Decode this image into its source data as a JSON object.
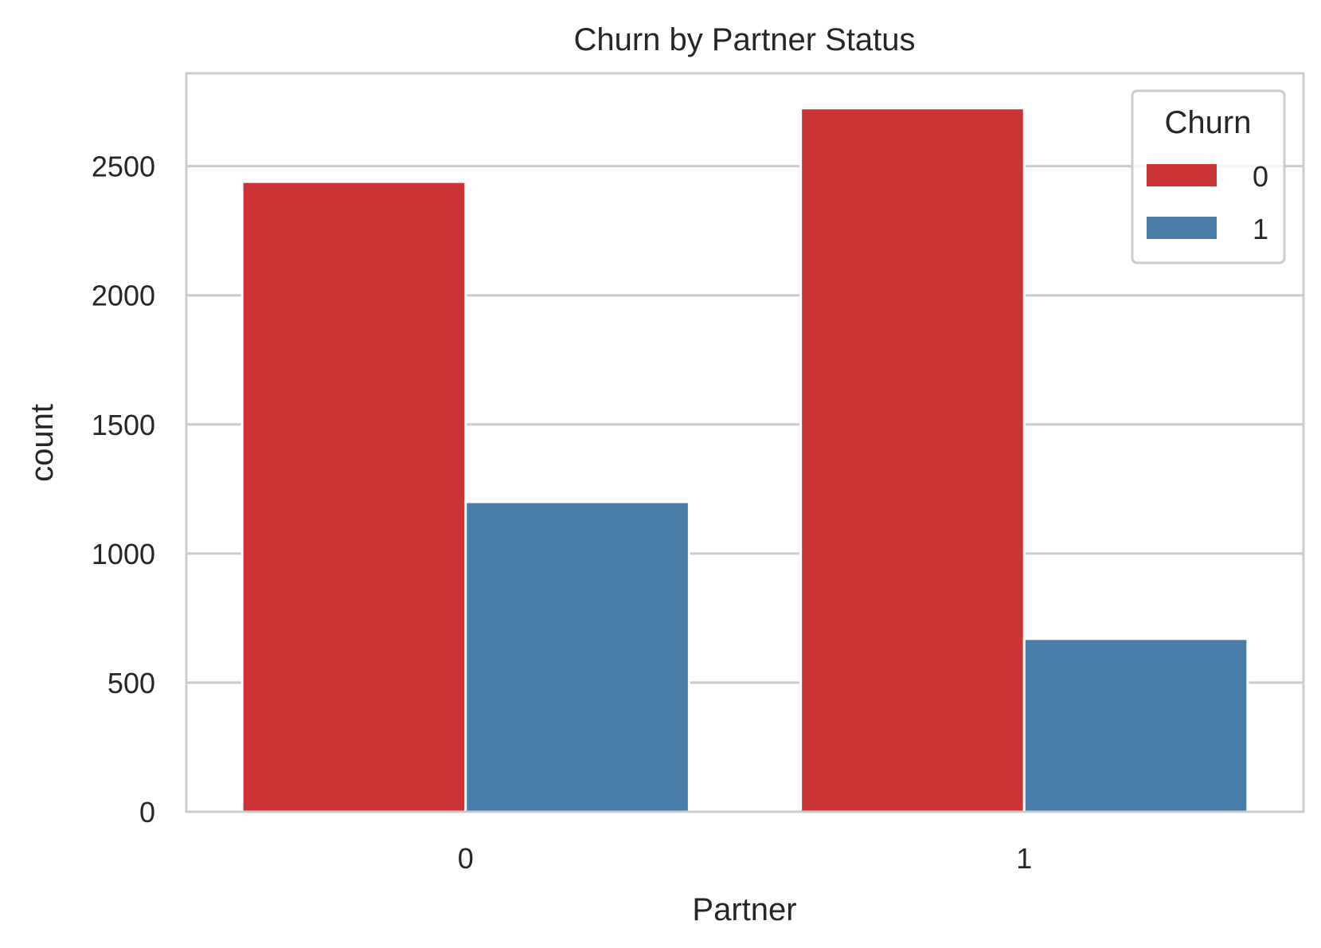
{
  "chart_data": {
    "type": "bar",
    "title": "Churn by Partner Status",
    "xlabel": "Partner",
    "ylabel": "count",
    "categories": [
      "0",
      "1"
    ],
    "series": [
      {
        "name": "0",
        "values": [
          2440,
          2725
        ]
      },
      {
        "name": "1",
        "values": [
          1200,
          670
        ]
      }
    ],
    "ylim": [
      0,
      2860
    ],
    "yticks": [
      0,
      500,
      1000,
      1500,
      2000,
      2500
    ],
    "grid": true,
    "legend": {
      "title": "Churn",
      "position": "top-right"
    },
    "colors": [
      "#cb3335",
      "#477ca8"
    ]
  }
}
